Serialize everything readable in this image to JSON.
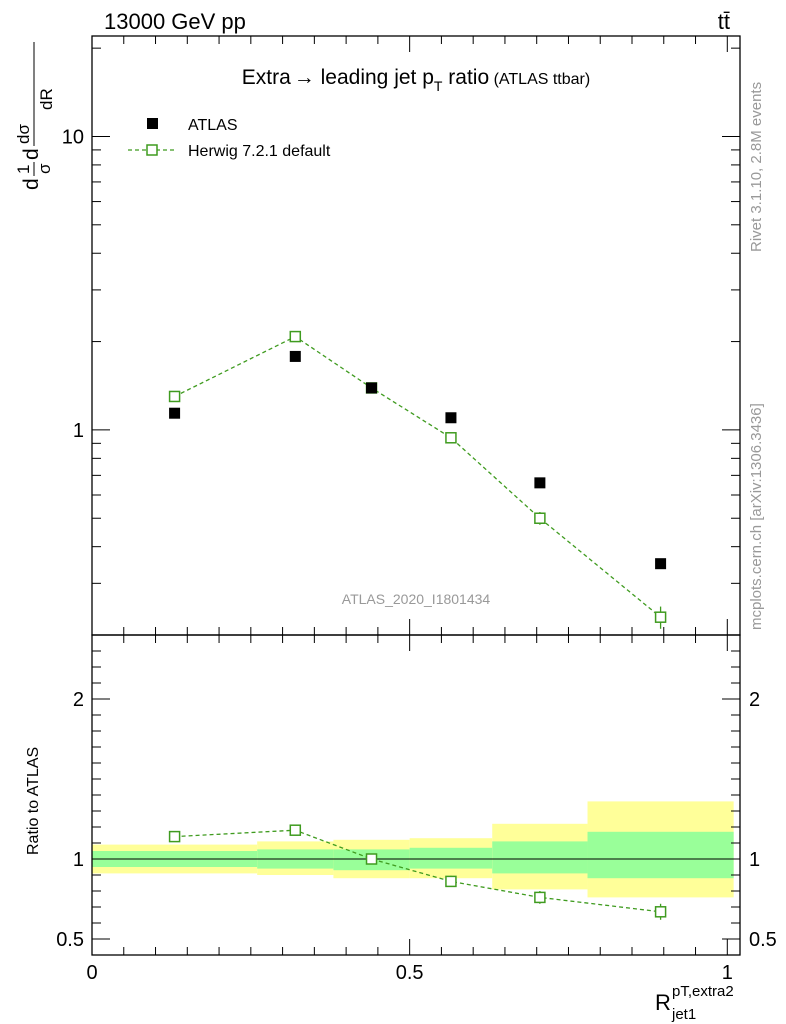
{
  "header": {
    "left": "13000 GeV pp",
    "right": "tt̄"
  },
  "side_labels": {
    "rivet": "Rivet 3.1.10,  2.8M events",
    "mcplots": "mcplots.cern.ch [arXiv:1306.3436]"
  },
  "chart_data": [
    {
      "type": "scatter",
      "panel": "main",
      "title_parts": [
        "Extra",
        "→",
        " leading jet p",
        "T",
        " ratio",
        " (ATLAS ttbar)"
      ],
      "analysis_label": "ATLAS_2020_I1801434",
      "ylabel": "dσ/dR (normalized)",
      "yscale": "log",
      "ylim": [
        0.2,
        22
      ],
      "xlim": [
        -0.0,
        1.02
      ],
      "y_ticks": [
        {
          "value": 1,
          "label": "1"
        },
        {
          "value": 10,
          "label": "10"
        }
      ],
      "legend": [
        {
          "name": "ATLAS",
          "marker": "filled-square",
          "color": "#000000"
        },
        {
          "name": "Herwig 7.2.1 default",
          "marker": "open-square",
          "color": "#3f9b1f"
        }
      ],
      "series": [
        {
          "name": "ATLAS",
          "color": "#000000",
          "x": [
            0.13,
            0.32,
            0.44,
            0.565,
            0.705,
            0.895
          ],
          "y": [
            1.14,
            1.78,
            1.39,
            1.1,
            0.66,
            0.35
          ]
        },
        {
          "name": "Herwig 7.2.1 default",
          "color": "#3f9b1f",
          "x": [
            0.13,
            0.32,
            0.44,
            0.565,
            0.705,
            0.895
          ],
          "y": [
            1.3,
            2.08,
            1.39,
            0.94,
            0.5,
            0.23
          ],
          "err": [
            0.02,
            0.05,
            0.03,
            0.03,
            0.025,
            0.02
          ]
        }
      ]
    },
    {
      "type": "scatter",
      "panel": "ratio",
      "ylabel": "Ratio to ATLAS",
      "xlabel_main": "R",
      "xlabel_sup": "pT,extra2",
      "xlabel_sub": "jet1",
      "ylim": [
        0.4,
        2.4
      ],
      "xlim": [
        -0.0,
        1.02
      ],
      "y_ticks": [
        {
          "value": 0.5,
          "label": "0.5"
        },
        {
          "value": 1,
          "label": "1"
        },
        {
          "value": 2,
          "label": "2"
        }
      ],
      "x_ticks": [
        {
          "value": 0,
          "label": "0"
        },
        {
          "value": 0.5,
          "label": "0.5"
        },
        {
          "value": 1,
          "label": "1"
        }
      ],
      "bands": [
        {
          "x0": 0.0,
          "x1": 0.26,
          "green": [
            0.95,
            1.05
          ],
          "yellow": [
            0.91,
            1.09
          ]
        },
        {
          "x0": 0.26,
          "x1": 0.38,
          "green": [
            0.94,
            1.06
          ],
          "yellow": [
            0.9,
            1.11
          ]
        },
        {
          "x0": 0.38,
          "x1": 0.5,
          "green": [
            0.93,
            1.06
          ],
          "yellow": [
            0.88,
            1.12
          ]
        },
        {
          "x0": 0.5,
          "x1": 0.63,
          "green": [
            0.94,
            1.07
          ],
          "yellow": [
            0.88,
            1.13
          ]
        },
        {
          "x0": 0.63,
          "x1": 0.78,
          "green": [
            0.91,
            1.11
          ],
          "yellow": [
            0.81,
            1.22
          ]
        },
        {
          "x0": 0.78,
          "x1": 1.01,
          "green": [
            0.88,
            1.17
          ],
          "yellow": [
            0.76,
            1.36
          ]
        }
      ],
      "series": [
        {
          "name": "Herwig 7.2.1 default",
          "color": "#3f9b1f",
          "x": [
            0.13,
            0.32,
            0.44,
            0.565,
            0.705,
            0.895
          ],
          "y": [
            1.14,
            1.18,
            1.0,
            0.86,
            0.76,
            0.67
          ],
          "err": [
            0.015,
            0.03,
            0.03,
            0.035,
            0.04,
            0.05
          ]
        }
      ]
    }
  ]
}
